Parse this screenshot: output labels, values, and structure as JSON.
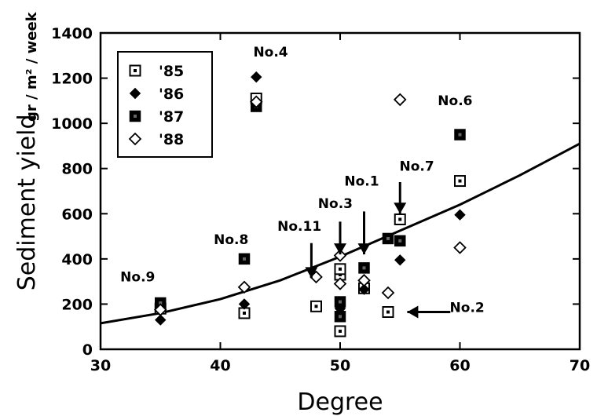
{
  "chart_data": {
    "type": "scatter",
    "xlabel": "Degree",
    "ylabel": "Sediment yield",
    "ylabel_unit": "gr / m² / week",
    "xlim": [
      30,
      70
    ],
    "ylim": [
      0,
      1400
    ],
    "xticks": [
      "30",
      "40",
      "50",
      "60",
      "70"
    ],
    "yticks": [
      "0",
      "200",
      "400",
      "600",
      "800",
      "1000",
      "1200",
      "1400"
    ],
    "legend_position": "top-left",
    "series": [
      {
        "name": "'85",
        "marker": "open-square-dot",
        "points": [
          [
            35,
            180
          ],
          [
            42,
            160
          ],
          [
            43,
            1110
          ],
          [
            48,
            190
          ],
          [
            50,
            80
          ],
          [
            50,
            330
          ],
          [
            50,
            355
          ],
          [
            52,
            270
          ],
          [
            54,
            165
          ],
          [
            55,
            575
          ],
          [
            60,
            745
          ]
        ]
      },
      {
        "name": "'86",
        "marker": "filled-diamond",
        "points": [
          [
            35,
            130
          ],
          [
            42,
            200
          ],
          [
            43,
            1205
          ],
          [
            50,
            180
          ],
          [
            52,
            265
          ],
          [
            55,
            395
          ],
          [
            60,
            595
          ]
        ]
      },
      {
        "name": "'87",
        "marker": "filled-square",
        "points": [
          [
            35,
            205
          ],
          [
            42,
            400
          ],
          [
            43,
            1075
          ],
          [
            50,
            145
          ],
          [
            50,
            210
          ],
          [
            52,
            360
          ],
          [
            54,
            490
          ],
          [
            55,
            480
          ],
          [
            60,
            950
          ]
        ]
      },
      {
        "name": "'88",
        "marker": "open-diamond",
        "points": [
          [
            35,
            175
          ],
          [
            42,
            275
          ],
          [
            43,
            1095
          ],
          [
            48,
            320
          ],
          [
            50,
            290
          ],
          [
            50,
            415
          ],
          [
            52,
            305
          ],
          [
            54,
            250
          ],
          [
            55,
            1105
          ],
          [
            60,
            450
          ]
        ]
      }
    ],
    "trend_line": [
      [
        30,
        115
      ],
      [
        35,
        160
      ],
      [
        40,
        222
      ],
      [
        45,
        305
      ],
      [
        50,
        410
      ],
      [
        55,
        525
      ],
      [
        60,
        640
      ],
      [
        65,
        770
      ],
      [
        70,
        910
      ]
    ],
    "annotations": [
      {
        "text": "No.9",
        "x": 33.1,
        "y": 300
      },
      {
        "text": "No.8",
        "x": 40.9,
        "y": 465
      },
      {
        "text": "No.4",
        "x": 44.2,
        "y": 1295
      },
      {
        "text": "No.11",
        "x": 46.6,
        "y": 525
      },
      {
        "text": "No.3",
        "x": 49.6,
        "y": 625
      },
      {
        "text": "No.1",
        "x": 51.8,
        "y": 725
      },
      {
        "text": "No.7",
        "x": 56.4,
        "y": 790
      },
      {
        "text": "No.6",
        "x": 59.6,
        "y": 1080
      },
      {
        "text": "No.2",
        "x": 60.6,
        "y": 165
      }
    ],
    "arrows": [
      {
        "label": "No.11",
        "x": 47.6,
        "y_from": 470,
        "y_to": 315
      },
      {
        "label": "No.3",
        "x": 50.0,
        "y_from": 565,
        "y_to": 420
      },
      {
        "label": "No.1",
        "x": 52.0,
        "y_from": 610,
        "y_to": 420
      },
      {
        "label": "No.7",
        "x": 55.0,
        "y_from": 740,
        "y_to": 600
      },
      {
        "label": "No.2",
        "x_from": 59.2,
        "x_to": 55.6,
        "y": 165
      }
    ]
  }
}
